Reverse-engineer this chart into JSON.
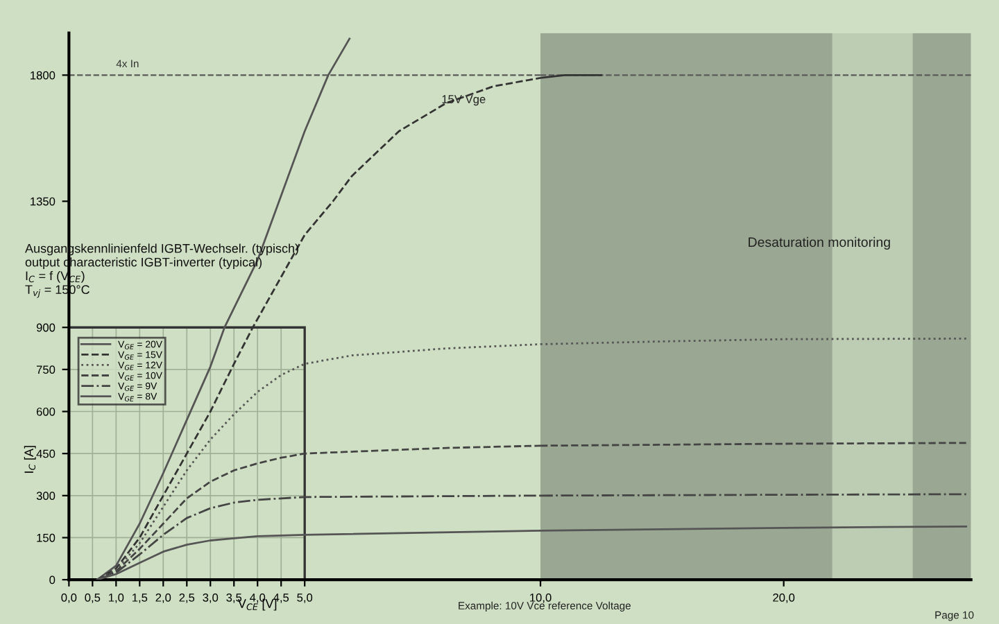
{
  "chart_data": [
    {
      "type": "line",
      "annotations": [
        "Ausgangskennlinienfeld IGBT-Wechselr. (typisch)",
        "output characteristic IGBT-inverter (typical)",
        "I$_{C}$ = f (V$_{CE}$)",
        "T$_{vj}$ = 150°C",
        {
          "text": "15V Vge",
          "x": 7.9,
          "y": 1700
        }
      ],
      "xlabel": "V$_{CE}$ [V]",
      "ylabel": "I$_{C}$ [A]",
      "xlim": [
        0,
        10
      ],
      "ylim": [
        0,
        1950
      ],
      "xticks": [
        {
          "value": 0,
          "label": "0,0"
        },
        {
          "value": 0.5,
          "label": "0,5"
        },
        {
          "value": 1,
          "label": "1,0"
        },
        {
          "value": 1.5,
          "label": "1,5"
        },
        {
          "value": 2,
          "label": "2,0"
        },
        {
          "value": 2.5,
          "label": "2,5"
        },
        {
          "value": 3,
          "label": "3,0"
        },
        {
          "value": 3.5,
          "label": "3,5"
        },
        {
          "value": 4,
          "label": "4,0"
        },
        {
          "value": 4.5,
          "label": "4,5"
        },
        {
          "value": 5,
          "label": "5,0"
        }
      ],
      "yticks": [
        0,
        150,
        300,
        450,
        600,
        750,
        900,
        1350,
        1800
      ],
      "grid": true,
      "legend": "left",
      "ref_lines": [
        {
          "axis": "y",
          "value": 1800,
          "label": "4x In",
          "color": "#5a5a5a",
          "line_style": "dashed"
        }
      ],
      "series": [
        {
          "name": "V$_{GE}$ = 20V",
          "color": "#555555",
          "line_style": "solid",
          "x": [
            0.6,
            1.0,
            1.5,
            2.0,
            2.5,
            3.0,
            3.3,
            4.0,
            5.0,
            5.5,
            5.95
          ],
          "values": [
            0,
            50,
            200,
            380,
            570,
            760,
            900,
            1140,
            1600,
            1800,
            1930
          ]
        },
        {
          "name": "V$_{GE}$ = 15V",
          "color": "#333333",
          "line_style": "dashed",
          "x": [
            0.6,
            1.0,
            1.5,
            2.0,
            2.5,
            3.0,
            3.5,
            3.9,
            4.5,
            5.0,
            5.6,
            6.0,
            7.0,
            8.0,
            9.0,
            10.0
          ],
          "values": [
            0,
            40,
            150,
            300,
            450,
            600,
            770,
            900,
            1080,
            1230,
            1350,
            1440,
            1600,
            1700,
            1760,
            1790
          ]
        },
        {
          "name": "V$_{GE}$ = 12V",
          "color": "#555555",
          "line_style": "dotted",
          "x": [
            0.6,
            1.0,
            1.5,
            2.0,
            2.5,
            3.0,
            3.5,
            4.0,
            4.5,
            5.0,
            6.0,
            8.0,
            10.0
          ],
          "values": [
            0,
            35,
            130,
            260,
            390,
            500,
            590,
            670,
            730,
            770,
            800,
            825,
            840
          ]
        },
        {
          "name": "V$_{GE}$ = 10V",
          "color": "#444444",
          "line_style": "dashed",
          "x": [
            0.6,
            1.0,
            1.5,
            2.0,
            2.5,
            3.0,
            3.5,
            4.0,
            4.5,
            5.0,
            8.0,
            10.0
          ],
          "values": [
            0,
            30,
            110,
            200,
            290,
            350,
            390,
            415,
            435,
            450,
            470,
            478
          ]
        },
        {
          "name": "V$_{GE}$ = 9V",
          "color": "#444444",
          "line_style": "dashdot",
          "x": [
            0.6,
            1.0,
            1.5,
            2.0,
            2.5,
            3.0,
            3.5,
            4.0,
            5.0,
            10.0
          ],
          "values": [
            0,
            25,
            90,
            160,
            220,
            255,
            275,
            285,
            295,
            300
          ]
        },
        {
          "name": "V$_{GE}$ = 8V",
          "color": "#555555",
          "line_style": "solid",
          "x": [
            0.6,
            1.0,
            1.5,
            2.0,
            2.5,
            3.0,
            3.5,
            4.0,
            5.0,
            10.0
          ],
          "values": [
            0,
            20,
            60,
            100,
            125,
            140,
            148,
            155,
            160,
            175
          ]
        }
      ]
    },
    {
      "type": "line",
      "annotations": [
        "Desaturation monitoring",
        "Example: 10V Vce reference Voltage",
        "Page 10"
      ],
      "xlim": [
        10,
        27.7
      ],
      "ylim": [
        0,
        1950
      ],
      "xticks": [
        {
          "value": 10,
          "label": "10,0"
        },
        {
          "value": 20,
          "label": "20,0"
        }
      ],
      "tick_labels": "x",
      "ref_lines": [
        {
          "axis": "y",
          "value": 1800,
          "color": "#5a5a5a",
          "line_style": "dashed"
        }
      ],
      "bands": [
        {
          "axis": "x",
          "from": 10,
          "to": 22,
          "color": "#9aa792"
        },
        {
          "axis": "x",
          "from": 22,
          "to": 25.3,
          "color": "#bccdb3"
        },
        {
          "axis": "x",
          "from": 25.3,
          "to": 27.7,
          "color": "#9aa792"
        }
      ],
      "series": [
        {
          "color": "#333333",
          "line_style": "solid",
          "x": [
            10.0,
            11.0,
            12.5
          ],
          "values": [
            1790,
            1800,
            1800
          ]
        },
        {
          "color": "#555555",
          "line_style": "dotted",
          "x": [
            10.0,
            15.0,
            20.0,
            27.5
          ],
          "values": [
            840,
            850,
            858,
            860
          ]
        },
        {
          "color": "#444444",
          "line_style": "dashed",
          "x": [
            10.0,
            20.0,
            27.5
          ],
          "values": [
            478,
            485,
            488
          ]
        },
        {
          "color": "#444444",
          "line_style": "dashdot",
          "x": [
            10.0,
            20.0,
            27.5
          ],
          "values": [
            300,
            303,
            305
          ]
        },
        {
          "color": "#555555",
          "line_style": "solid",
          "x": [
            10.0,
            20.0,
            27.5
          ],
          "values": [
            175,
            185,
            190
          ]
        }
      ]
    }
  ]
}
